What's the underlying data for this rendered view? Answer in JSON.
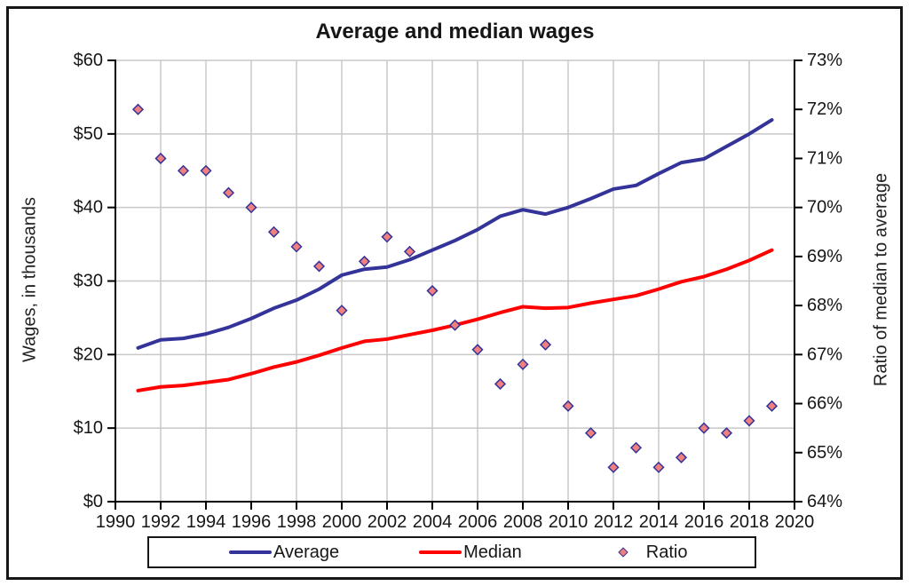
{
  "chart_data": {
    "type": "line",
    "title": "Average and median wages",
    "x": [
      1991,
      1992,
      1993,
      1994,
      1995,
      1996,
      1997,
      1998,
      1999,
      2000,
      2001,
      2002,
      2003,
      2004,
      2005,
      2006,
      2007,
      2008,
      2009,
      2010,
      2011,
      2012,
      2013,
      2014,
      2015,
      2016,
      2017,
      2018,
      2019
    ],
    "series": [
      {
        "name": "Average",
        "type": "line",
        "axis": "left",
        "color": "#333399",
        "values": [
          20.9,
          22.0,
          22.2,
          22.8,
          23.7,
          24.9,
          26.3,
          27.4,
          28.9,
          30.8,
          31.6,
          31.9,
          32.9,
          34.2,
          35.5,
          37.0,
          38.8,
          39.7,
          39.1,
          40.0,
          41.2,
          42.5,
          43.0,
          44.6,
          46.1,
          46.6,
          48.3,
          50.0,
          51.9
        ]
      },
      {
        "name": "Median",
        "type": "line",
        "axis": "left",
        "color": "#FF0000",
        "values": [
          15.1,
          15.6,
          15.8,
          16.2,
          16.6,
          17.4,
          18.3,
          19.0,
          19.9,
          20.9,
          21.8,
          22.1,
          22.7,
          23.3,
          24.0,
          24.8,
          25.7,
          26.5,
          26.3,
          26.4,
          27.0,
          27.5,
          28.0,
          28.9,
          29.9,
          30.6,
          31.6,
          32.8,
          34.2
        ]
      },
      {
        "name": "Ratio",
        "type": "scatter",
        "axis": "right",
        "marker": "diamond",
        "marker_fill": "#F08080",
        "marker_stroke": "#333399",
        "values": [
          72.0,
          71.0,
          70.75,
          70.75,
          70.3,
          70.0,
          69.5,
          69.2,
          68.8,
          67.9,
          68.9,
          69.4,
          69.1,
          68.3,
          67.6,
          67.1,
          66.4,
          66.8,
          67.2,
          65.95,
          65.4,
          64.7,
          65.1,
          64.7,
          64.9,
          65.5,
          65.4,
          65.65,
          65.95
        ]
      }
    ],
    "axes": {
      "x": {
        "min": 1990,
        "max": 2020,
        "tick_step": 2,
        "tick_labels": [
          "1990",
          "1992",
          "1994",
          "1996",
          "1998",
          "2000",
          "2002",
          "2004",
          "2006",
          "2008",
          "2010",
          "2012",
          "2014",
          "2016",
          "2018",
          "2020"
        ]
      },
      "y_left": {
        "label": "Wages, in thousands",
        "min": 0,
        "max": 60,
        "tick_step": 10,
        "tick_labels": [
          "$0",
          "$10",
          "$20",
          "$30",
          "$40",
          "$50",
          "$60"
        ]
      },
      "y_right": {
        "label": "Ratio of median to average",
        "min": 64,
        "max": 73,
        "tick_step": 1,
        "tick_labels": [
          "64%",
          "65%",
          "66%",
          "67%",
          "68%",
          "69%",
          "70%",
          "71%",
          "72%",
          "73%"
        ]
      }
    },
    "grid": true,
    "legend_position": "bottom",
    "colors": {
      "gridline": "#C8C8C8",
      "axis": "#000000",
      "text": "#161616"
    }
  }
}
